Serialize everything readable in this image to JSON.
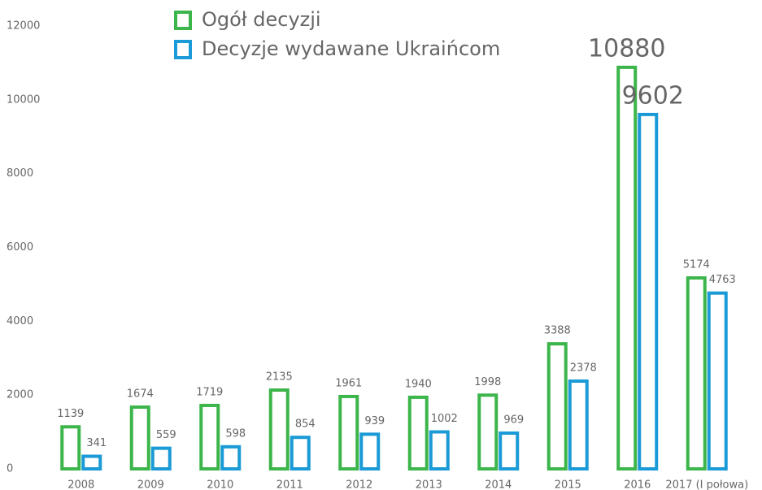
{
  "chart_data": {
    "type": "bar",
    "categories": [
      "2008",
      "2009",
      "2010",
      "2011",
      "2012",
      "2013",
      "2014",
      "2015",
      "2016",
      "2017 (I połowa)"
    ],
    "series": [
      {
        "name": "Ogół decyzji",
        "color": "#3cb54a",
        "values": [
          1139,
          1674,
          1719,
          2135,
          1961,
          1940,
          1998,
          3388,
          10880,
          5174
        ]
      },
      {
        "name": "Decyzje wydawane Ukraińcom",
        "color": "#1a9ad6",
        "values": [
          341,
          559,
          598,
          854,
          939,
          1002,
          969,
          2378,
          9602,
          4763
        ]
      }
    ],
    "ylim": [
      0,
      12000
    ],
    "yticks": [
      0,
      2000,
      4000,
      6000,
      8000,
      10000,
      12000
    ],
    "grid": false,
    "legend": "top"
  }
}
